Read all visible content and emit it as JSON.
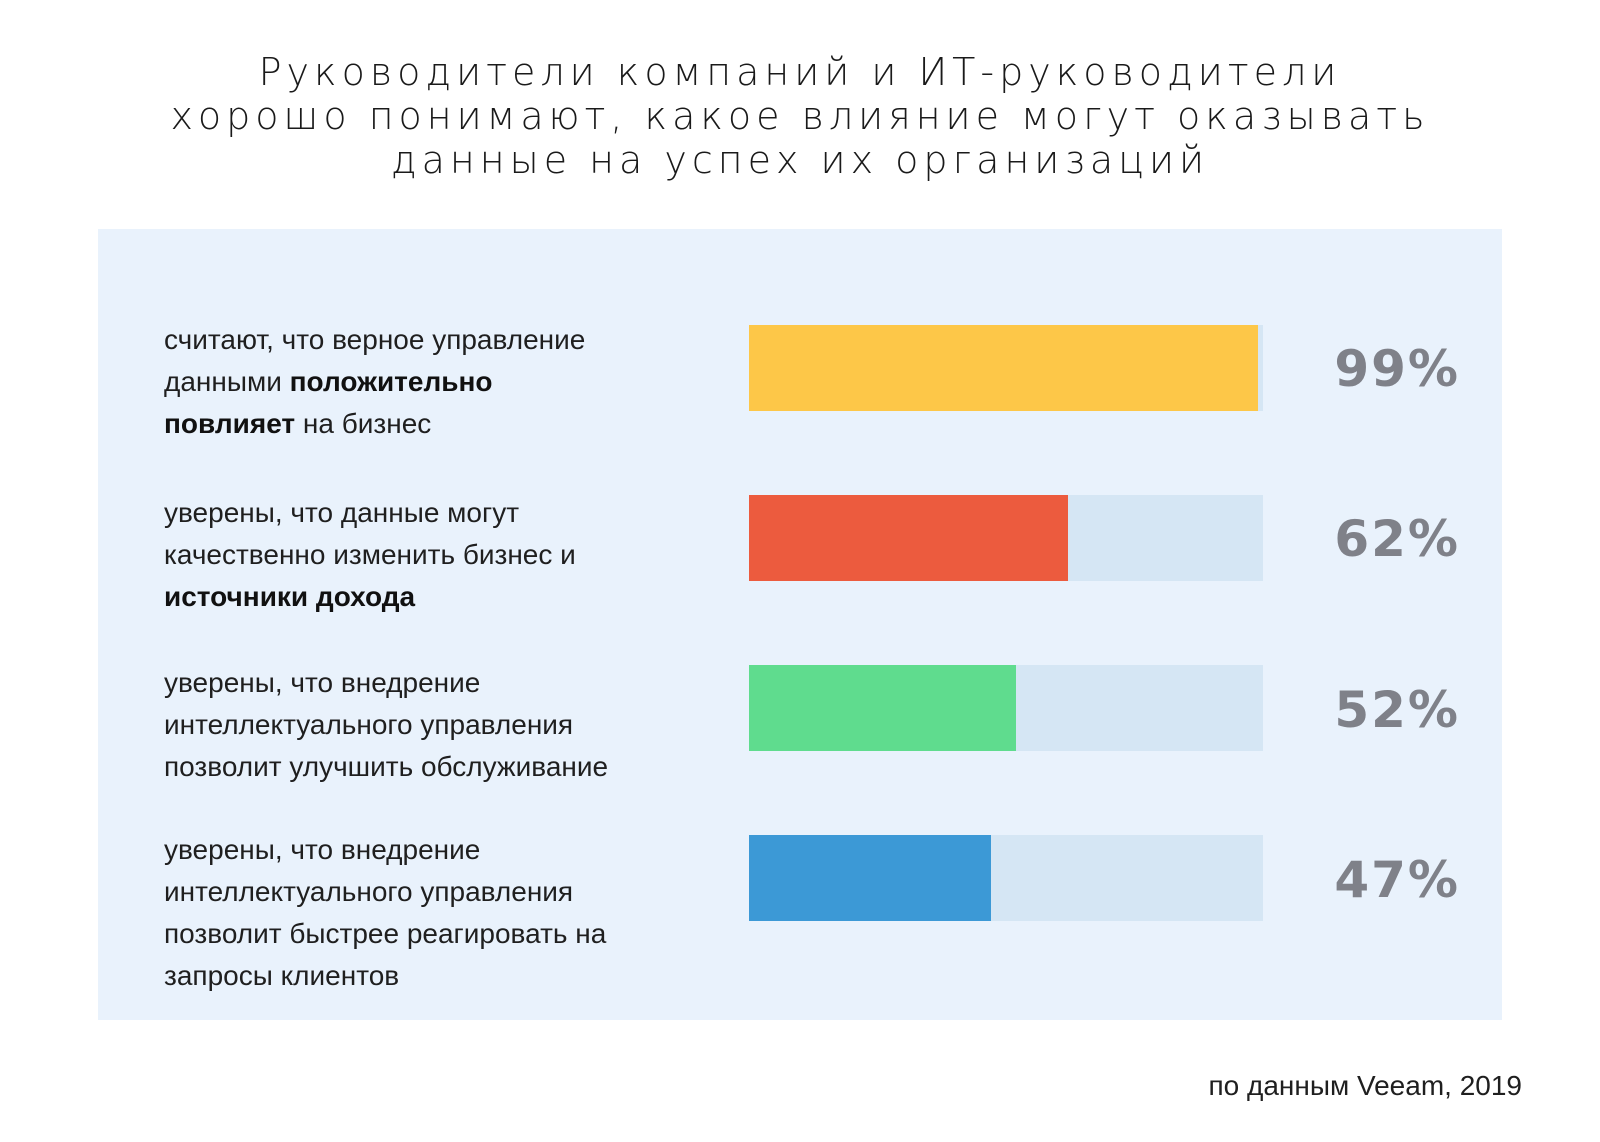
{
  "title": {
    "lines": [
      "Руководители компаний и ИТ-руководители",
      "хорошо понимают, какое влияние могут оказывать",
      "данные на успех их организаций"
    ]
  },
  "rows": [
    {
      "label_lines": [
        [
          {
            "t": "считают, что верное управление",
            "b": false
          }
        ],
        [
          {
            "t": "данными ",
            "b": false
          },
          {
            "t": "положительно",
            "b": true
          }
        ],
        [
          {
            "t": "повлияет",
            "b": true
          },
          {
            "t": " на бизнес",
            "b": false
          }
        ]
      ],
      "value_text": "99%"
    },
    {
      "label_lines": [
        [
          {
            "t": "уверены, что данные могут",
            "b": false
          }
        ],
        [
          {
            "t": "качественно изменить бизнес и",
            "b": false
          }
        ],
        [
          {
            "t": "источники дохода",
            "b": true
          }
        ]
      ],
      "value_text": "62%"
    },
    {
      "label_lines": [
        [
          {
            "t": "уверены, что внедрение",
            "b": false
          }
        ],
        [
          {
            "t": "интеллектуального управления",
            "b": false
          }
        ],
        [
          {
            "t": "позволит улучшить обслуживание",
            "b": false
          }
        ]
      ],
      "value_text": "52%"
    },
    {
      "label_lines": [
        [
          {
            "t": "уверены, что внедрение",
            "b": false
          }
        ],
        [
          {
            "t": "интеллектуального управления",
            "b": false
          }
        ],
        [
          {
            "t": "позволит быстрее реагировать на",
            "b": false
          }
        ],
        [
          {
            "t": "запросы клиентов",
            "b": false
          }
        ]
      ],
      "value_text": "47%"
    }
  ],
  "source": "по данным Veeam, 2019",
  "colors": {
    "bar_1": "#fdc748",
    "bar_2": "#ec5b3e",
    "bar_3": "#5fdc8e",
    "bar_4": "#3c99d6",
    "track": "#d5e6f4",
    "panel": "#e9f2fc",
    "value_text": "#7f8189"
  },
  "chart_data": {
    "type": "bar",
    "orientation": "horizontal",
    "categories": [
      "считают, что верное управление данными положительно повлияет на бизнес",
      "уверены, что данные могут качественно изменить бизнес и источники дохода",
      "уверены, что внедрение интеллектуального управления позволит улучшить обслуживание",
      "уверены, что внедрение интеллектуального управления позволит быстрее реагировать на запросы клиентов"
    ],
    "values": [
      99,
      62,
      52,
      47
    ],
    "xlim": [
      0,
      100
    ],
    "grid": false,
    "legend": "none"
  }
}
